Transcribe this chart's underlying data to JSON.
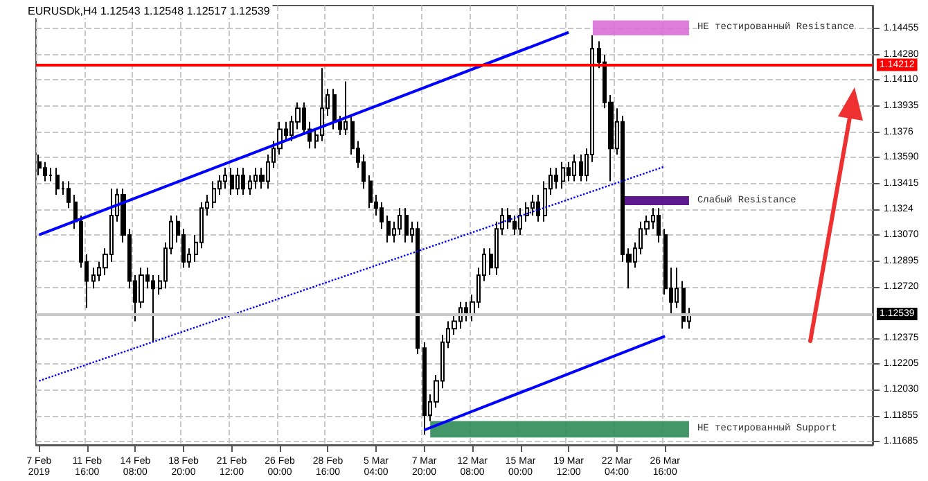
{
  "chart_data": {
    "type": "candlestick",
    "title": "EURUSDk,H4 1.12543 1.12548 1.12517 1.12539",
    "color": "#000000",
    "categories": [
      "7 Feb 2019",
      null,
      null,
      null,
      null,
      null,
      null,
      null,
      "11 Feb 16:00",
      null,
      null,
      null,
      null,
      null,
      null,
      null,
      "14 Feb 08:00",
      null,
      null,
      null,
      null,
      null,
      null,
      null,
      "18 Feb 20:00",
      null,
      null,
      null,
      null,
      null,
      null,
      null,
      "21 Feb 12:00",
      null,
      null,
      null,
      null,
      null,
      null,
      null,
      "26 Feb 00:00",
      null,
      null,
      null,
      null,
      null,
      null,
      null,
      "28 Feb 16:00",
      null,
      null,
      null,
      null,
      null,
      null,
      null,
      "5 Mar 04:00",
      null,
      null,
      null,
      null,
      null,
      null,
      null,
      "7 Mar 20:00",
      null,
      null,
      null,
      null,
      null,
      null,
      null,
      "12 Mar 08:00",
      null,
      null,
      null,
      null,
      null,
      null,
      null,
      "15 Mar 00:00",
      null,
      null,
      null,
      null,
      null,
      null,
      null,
      "19 Mar 12:00",
      null,
      null,
      null,
      null,
      null,
      null,
      null,
      "22 Mar 04:00",
      null,
      null,
      null,
      null,
      null,
      null,
      null,
      "26 Mar 16:00",
      null,
      null,
      null,
      null,
      null,
      null,
      null,
      null,
      null,
      null,
      null,
      null,
      null,
      null,
      null,
      null,
      null,
      null,
      null,
      null,
      null,
      null,
      null,
      null,
      null,
      null,
      null,
      null,
      null,
      null,
      null,
      null,
      null,
      null
    ],
    "ohlc": [
      [
        1.1356,
        1.1361,
        1.1347,
        1.1352
      ],
      [
        1.1352,
        1.1356,
        1.1343,
        1.1347
      ],
      [
        1.1347,
        1.1352,
        1.1343,
        1.1347
      ],
      [
        1.1347,
        1.1352,
        1.1334,
        1.1338
      ],
      [
        1.1338,
        1.1343,
        1.1334,
        1.1338
      ],
      [
        1.1338,
        1.1343,
        1.1325,
        1.1329
      ],
      [
        1.1329,
        1.1334,
        1.1311,
        1.1316
      ],
      [
        1.1316,
        1.132,
        1.1285,
        1.1289
      ],
      [
        1.1289,
        1.1294,
        1.1258,
        1.1276
      ],
      [
        1.1276,
        1.1285,
        1.1271,
        1.128
      ],
      [
        1.128,
        1.1289,
        1.1276,
        1.1285
      ],
      [
        1.1285,
        1.1298,
        1.128,
        1.1294
      ],
      [
        1.1294,
        1.1338,
        1.1289,
        1.132
      ],
      [
        1.132,
        1.1338,
        1.1316,
        1.1334
      ],
      [
        1.1334,
        1.1338,
        1.1302,
        1.1307
      ],
      [
        1.1307,
        1.1311,
        1.1271,
        1.1276
      ],
      [
        1.1276,
        1.128,
        1.1249,
        1.1262
      ],
      [
        1.1262,
        1.1285,
        1.1258,
        1.128
      ],
      [
        1.128,
        1.1285,
        1.1271,
        1.1276
      ],
      [
        1.1276,
        1.128,
        1.1235,
        1.1271
      ],
      [
        1.1271,
        1.128,
        1.1267,
        1.1276
      ],
      [
        1.1276,
        1.1302,
        1.1271,
        1.1298
      ],
      [
        1.1298,
        1.132,
        1.1294,
        1.1316
      ],
      [
        1.1316,
        1.132,
        1.1302,
        1.1307
      ],
      [
        1.1307,
        1.1311,
        1.1285,
        1.1289
      ],
      [
        1.1289,
        1.1298,
        1.1285,
        1.1294
      ],
      [
        1.1294,
        1.1307,
        1.1289,
        1.1302
      ],
      [
        1.1302,
        1.1329,
        1.1298,
        1.1325
      ],
      [
        1.1325,
        1.1334,
        1.132,
        1.1329
      ],
      [
        1.1329,
        1.1343,
        1.1325,
        1.1338
      ],
      [
        1.1338,
        1.1347,
        1.1334,
        1.1343
      ],
      [
        1.1343,
        1.1352,
        1.1338,
        1.1347
      ],
      [
        1.1347,
        1.1352,
        1.1334,
        1.1338
      ],
      [
        1.1338,
        1.1352,
        1.1334,
        1.1347
      ],
      [
        1.1347,
        1.1352,
        1.1334,
        1.1338
      ],
      [
        1.1338,
        1.1347,
        1.1334,
        1.1343
      ],
      [
        1.1343,
        1.1352,
        1.1338,
        1.1347
      ],
      [
        1.1347,
        1.1352,
        1.1338,
        1.1343
      ],
      [
        1.1343,
        1.1361,
        1.1338,
        1.1356
      ],
      [
        1.1356,
        1.137,
        1.1352,
        1.1365
      ],
      [
        1.1365,
        1.1383,
        1.1361,
        1.1378
      ],
      [
        1.1378,
        1.1383,
        1.137,
        1.1374
      ],
      [
        1.1374,
        1.1387,
        1.137,
        1.1383
      ],
      [
        1.1383,
        1.1396,
        1.1378,
        1.1392
      ],
      [
        1.1392,
        1.1396,
        1.1374,
        1.1378
      ],
      [
        1.1378,
        1.1383,
        1.1365,
        1.137
      ],
      [
        1.137,
        1.1378,
        1.1365,
        1.1374
      ],
      [
        1.1374,
        1.1419,
        1.137,
        1.1392
      ],
      [
        1.1392,
        1.1405,
        1.1387,
        1.1401
      ],
      [
        1.1401,
        1.1405,
        1.1378,
        1.1383
      ],
      [
        1.1383,
        1.1387,
        1.1374,
        1.1378
      ],
      [
        1.1378,
        1.141,
        1.1374,
        1.1383
      ],
      [
        1.1383,
        1.1387,
        1.1361,
        1.1365
      ],
      [
        1.1365,
        1.137,
        1.1352,
        1.1356
      ],
      [
        1.1356,
        1.1361,
        1.1338,
        1.1343
      ],
      [
        1.1343,
        1.1347,
        1.1325,
        1.1329
      ],
      [
        1.1329,
        1.1334,
        1.132,
        1.1325
      ],
      [
        1.1325,
        1.1329,
        1.1311,
        1.1316
      ],
      [
        1.1316,
        1.132,
        1.1302,
        1.1307
      ],
      [
        1.1307,
        1.1316,
        1.1302,
        1.1311
      ],
      [
        1.1311,
        1.1325,
        1.1307,
        1.132
      ],
      [
        1.132,
        1.1325,
        1.1302,
        1.1307
      ],
      [
        1.1307,
        1.1316,
        1.1302,
        1.1311
      ],
      [
        1.1311,
        1.1316,
        1.1227,
        1.1231
      ],
      [
        1.1231,
        1.1235,
        1.1173,
        1.1186
      ],
      [
        1.1186,
        1.12,
        1.1182,
        1.1195
      ],
      [
        1.1195,
        1.1213,
        1.1191,
        1.1209
      ],
      [
        1.1209,
        1.124,
        1.1204,
        1.1235
      ],
      [
        1.1235,
        1.1249,
        1.1231,
        1.1244
      ],
      [
        1.1244,
        1.1253,
        1.124,
        1.1249
      ],
      [
        1.1249,
        1.1262,
        1.1244,
        1.1258
      ],
      [
        1.1258,
        1.1262,
        1.1249,
        1.1253
      ],
      [
        1.1253,
        1.1267,
        1.1249,
        1.1262
      ],
      [
        1.1262,
        1.1285,
        1.1258,
        1.128
      ],
      [
        1.128,
        1.1298,
        1.1276,
        1.1294
      ],
      [
        1.1294,
        1.1298,
        1.128,
        1.1285
      ],
      [
        1.1285,
        1.1316,
        1.128,
        1.1311
      ],
      [
        1.1311,
        1.1325,
        1.1307,
        1.132
      ],
      [
        1.132,
        1.1325,
        1.1311,
        1.1316
      ],
      [
        1.1316,
        1.132,
        1.1307,
        1.1311
      ],
      [
        1.1311,
        1.1325,
        1.1307,
        1.132
      ],
      [
        1.132,
        1.1329,
        1.1316,
        1.1325
      ],
      [
        1.1325,
        1.1334,
        1.132,
        1.1329
      ],
      [
        1.1329,
        1.1334,
        1.1316,
        1.132
      ],
      [
        1.132,
        1.1343,
        1.1316,
        1.1338
      ],
      [
        1.1338,
        1.1352,
        1.1334,
        1.1347
      ],
      [
        1.1347,
        1.1352,
        1.1338,
        1.1343
      ],
      [
        1.1343,
        1.1356,
        1.1338,
        1.1352
      ],
      [
        1.1352,
        1.1356,
        1.1343,
        1.1347
      ],
      [
        1.1347,
        1.1361,
        1.1343,
        1.1356
      ],
      [
        1.1356,
        1.1361,
        1.1343,
        1.1347
      ],
      [
        1.1347,
        1.1365,
        1.1343,
        1.1361
      ],
      [
        1.1361,
        1.1441,
        1.1356,
        1.1432
      ],
      [
        1.1432,
        1.1437,
        1.1419,
        1.1423
      ],
      [
        1.1423,
        1.1428,
        1.1392,
        1.1396
      ],
      [
        1.1396,
        1.1401,
        1.1343,
        1.1365
      ],
      [
        1.1365,
        1.1392,
        1.1361,
        1.1383
      ],
      [
        1.1383,
        1.1387,
        1.1289,
        1.1294
      ],
      [
        1.1294,
        1.1298,
        1.1271,
        1.1289
      ],
      [
        1.1289,
        1.1302,
        1.1285,
        1.1298
      ],
      [
        1.1298,
        1.1316,
        1.1294,
        1.1311
      ],
      [
        1.1311,
        1.132,
        1.1307,
        1.1316
      ],
      [
        1.1316,
        1.1325,
        1.1311,
        1.132
      ],
      [
        1.132,
        1.1325,
        1.1302,
        1.1307
      ],
      [
        1.1307,
        1.1311,
        1.1267,
        1.1271
      ],
      [
        1.1271,
        1.1285,
        1.1253,
        1.1262
      ],
      [
        1.1262,
        1.1285,
        1.1258,
        1.1271
      ],
      [
        1.1271,
        1.1276,
        1.1244,
        1.1249
      ],
      [
        1.1249,
        1.1258,
        1.1244,
        1.1253
      ],
      null,
      null,
      null,
      null,
      null,
      null,
      null,
      null,
      null,
      null,
      null,
      null,
      null,
      null,
      null,
      null,
      null,
      null,
      null,
      null,
      null,
      null,
      null,
      null,
      null,
      null,
      null,
      null,
      null,
      null
    ],
    "series": [
      {
        "type": "line",
        "color": "#0000ff",
        "line_style": "solid",
        "x": [
          "7 Feb 2019",
          "19 Mar 12:00"
        ],
        "values": [
          1.1307,
          1.1443
        ]
      },
      {
        "type": "line",
        "color": "#0000ff",
        "line_style": "solid",
        "x": [
          "7 Mar 20:00",
          "26 Mar 16:00"
        ],
        "values": [
          1.1176,
          1.1239
        ]
      },
      {
        "type": "line",
        "color": "#0000ff",
        "line_style": "dotted",
        "x": [
          "7 Feb 2019",
          "26 Mar 16:00"
        ],
        "values": [
          1.1209,
          1.1353
        ]
      }
    ],
    "ylim": [
      1.1166,
      1.1461
    ],
    "yticks": [
      1.14455,
      {
        "value": 1.1428,
        "label": "1.14280"
      },
      {
        "value": 1.1411,
        "label": "1.14110"
      },
      1.13935,
      1.1376,
      {
        "value": 1.1359,
        "label": "1.13590"
      },
      1.13415,
      1.1324,
      {
        "value": 1.1307,
        "label": "1.13070"
      },
      1.12895,
      {
        "value": 1.1272,
        "label": "1.12720"
      },
      1.12375,
      1.12205,
      {
        "value": 1.1203,
        "label": "1.12030"
      },
      1.11855,
      1.11685
    ],
    "ref_lines": [
      {
        "axis": "y",
        "value": 1.14212,
        "label": "1.14212",
        "color": "#ff0000"
      },
      {
        "axis": "y",
        "value": 1.12539,
        "label": "1.12539",
        "color": "#c8c8c8"
      }
    ],
    "bands": [
      {
        "axis": "y",
        "from": 1.1441,
        "to": 1.1451,
        "color": "#da70d6",
        "label": "НЕ тестированный Resistance"
      },
      {
        "axis": "y",
        "from": 1.1327,
        "to": 1.1333,
        "color": "#4b0082",
        "label": "Слабый Resistance"
      },
      {
        "axis": "y",
        "from": 1.1171,
        "to": 1.1182,
        "color": "#2e8b57",
        "label": "НЕ тестированный Support"
      }
    ],
    "grid": true
  }
}
